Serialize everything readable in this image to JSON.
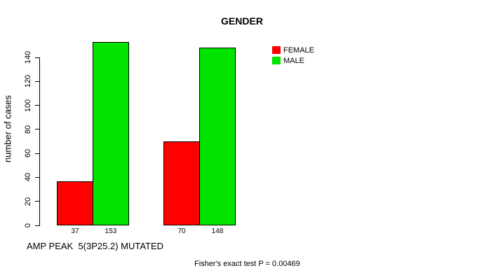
{
  "chart_data": {
    "type": "bar",
    "title": "GENDER",
    "ylabel": "number of cases",
    "xlabel": "AMP PEAK  5(3P25.2) MUTATED",
    "caption": "Fisher's exact test P = 0.00469",
    "legend": {
      "position": "top-right",
      "entries": [
        {
          "label": "FEMALE",
          "color": "#ff0000"
        },
        {
          "label": "MALE",
          "color": "#00e400"
        }
      ]
    },
    "series": [
      {
        "name": "FEMALE",
        "color": "#ff0000",
        "values": [
          37,
          70
        ]
      },
      {
        "name": "MALE",
        "color": "#00e400",
        "values": [
          153,
          148
        ]
      }
    ],
    "bar_value_labels": [
      [
        "37",
        "153"
      ],
      [
        "70",
        "148"
      ]
    ],
    "yticks": [
      0,
      20,
      40,
      60,
      80,
      100,
      120,
      140
    ],
    "ylim": [
      0,
      140
    ],
    "grid": false,
    "axis_color": "#000000",
    "background": "#ffffff"
  }
}
